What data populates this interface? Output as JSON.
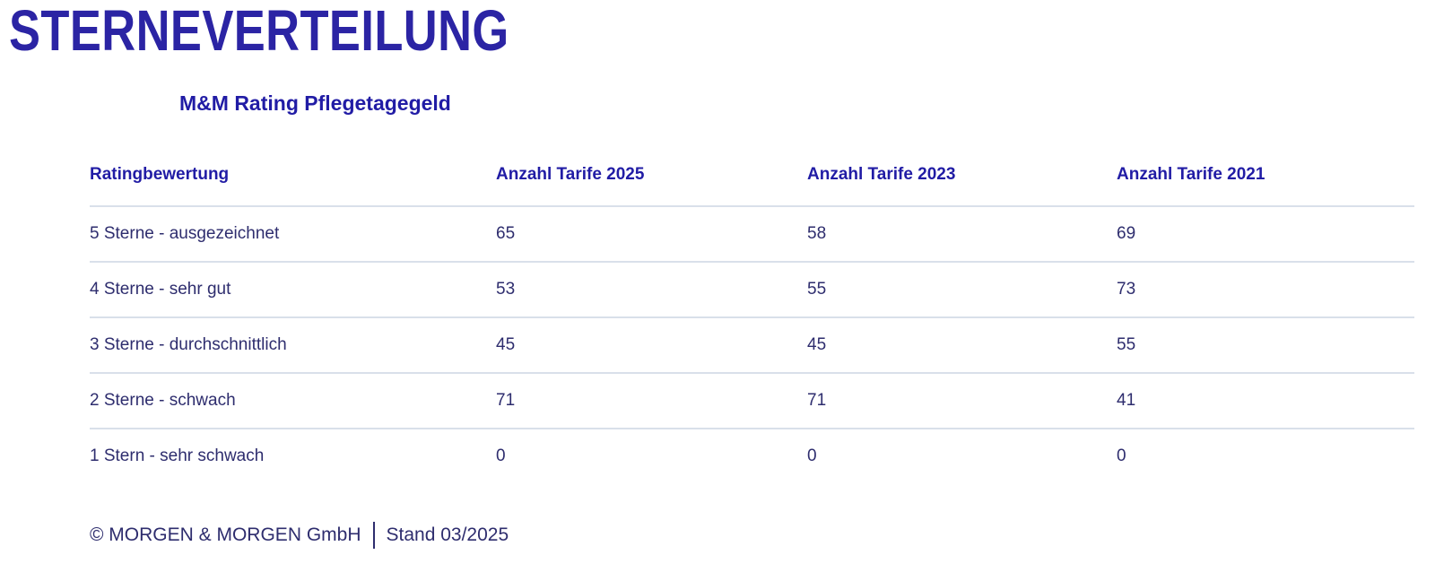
{
  "page": {
    "title": "STERNEVERTEILUNG",
    "subtitle": "M&M Rating Pflegetagegeld",
    "footer": {
      "copyright": "© MORGEN & MORGEN GmbH",
      "stand": "Stand 03/2025"
    }
  },
  "colors": {
    "title": "#2B24A4",
    "accent": "#211CA5",
    "body": "#2E2D6E",
    "divider": "#D9E0EA",
    "background": "#FFFFFF"
  },
  "chart_data": {
    "type": "table",
    "title": "Sterneverteilung",
    "subtitle": "M&M Rating Pflegetagegeld",
    "columns": [
      "Ratingbewertung",
      "Anzahl Tarife 2025",
      "Anzahl Tarife 2023",
      "Anzahl Tarife 2021"
    ],
    "rows": [
      {
        "label": "5 Sterne - ausgezeichnet",
        "values": [
          65,
          58,
          69
        ]
      },
      {
        "label": "4 Sterne - sehr gut",
        "values": [
          53,
          55,
          73
        ]
      },
      {
        "label": "3 Sterne - durchschnittlich",
        "values": [
          45,
          45,
          55
        ]
      },
      {
        "label": "2 Sterne - schwach",
        "values": [
          71,
          71,
          41
        ]
      },
      {
        "label": "1 Stern - sehr schwach",
        "values": [
          0,
          0,
          0
        ]
      }
    ]
  }
}
